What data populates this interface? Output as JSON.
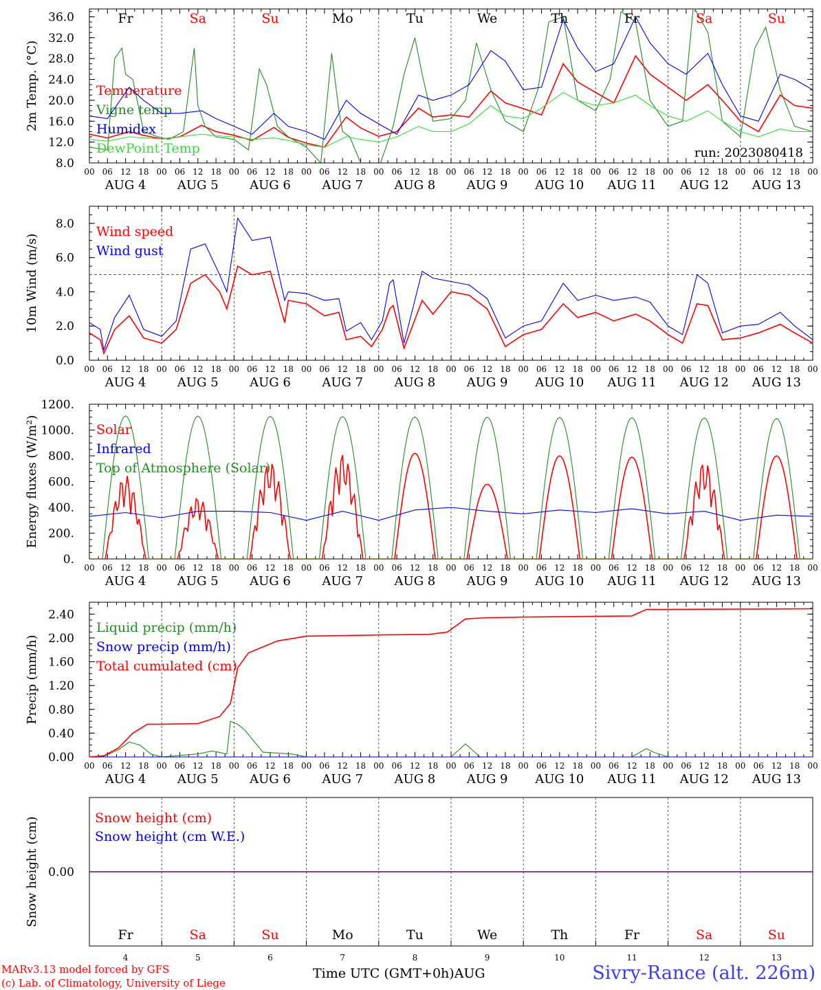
{
  "run": "run: 2023080418",
  "day_labels": [
    {
      "text": "Fr",
      "color": "#000000"
    },
    {
      "text": "Sa",
      "color": "#ff0000"
    },
    {
      "text": "Su",
      "color": "#ff0000"
    },
    {
      "text": "Mo",
      "color": "#000000"
    },
    {
      "text": "Tu",
      "color": "#000000"
    },
    {
      "text": "We",
      "color": "#000000"
    },
    {
      "text": "Th",
      "color": "#000000"
    },
    {
      "text": "Fr",
      "color": "#000000"
    },
    {
      "text": "Sa",
      "color": "#ff0000"
    },
    {
      "text": "Su",
      "color": "#ff0000"
    }
  ],
  "date_labels": [
    "AUG 4",
    "AUG 5",
    "AUG 6",
    "AUG 7",
    "AUG 8",
    "AUG 9",
    "AUG 10",
    "AUG 11",
    "AUG 12",
    "AUG 13"
  ],
  "day_numbers": [
    "4",
    "5",
    "6",
    "7",
    "8",
    "9",
    "10",
    "11",
    "12",
    "13"
  ],
  "hour_ticks": [
    "00",
    "06",
    "12",
    "18"
  ],
  "footer": {
    "model": "MARv3.13 model forced by GFS",
    "copyright": "(c) Lab. of Climatology, University of Liege",
    "time_label": "Time UTC (GMT+0h)AUG",
    "station": "Sivry-Rance (alt. 226m)"
  },
  "chart_data": [
    {
      "type": "line",
      "ylabel": "2m Temp. (°C)",
      "ylim": [
        8,
        37.5
      ],
      "ytick_values": [
        8,
        12,
        16,
        20,
        24,
        28,
        32,
        36
      ],
      "ytick_labels": [
        "8.0",
        "12.0",
        "16.0",
        "20.0",
        "24.0",
        "28.0",
        "32.0",
        "36.0"
      ],
      "x_unit": "days since Aug 4 00 UTC",
      "series": [
        {
          "name": "Temperature",
          "color": "#ff0000",
          "x": [
            0,
            0.25,
            0.55,
            0.75,
            1,
            1.25,
            1.55,
            1.75,
            2,
            2.25,
            2.55,
            2.75,
            3,
            3.25,
            3.55,
            3.75,
            4,
            4.25,
            4.55,
            4.75,
            5,
            5.25,
            5.55,
            5.75,
            6,
            6.25,
            6.55,
            6.75,
            7,
            7.25,
            7.55,
            7.75,
            8,
            8.25,
            8.55,
            8.75,
            9,
            9.25,
            9.55,
            9.75,
            10
          ],
          "y": [
            13.5,
            12.8,
            14,
            13.3,
            12.6,
            13,
            15.2,
            14,
            13.3,
            12.3,
            14.8,
            12.9,
            11.8,
            11,
            16.8,
            14.7,
            13.1,
            14,
            18.5,
            16.8,
            17.2,
            16.8,
            21.8,
            19.5,
            18.4,
            17.2,
            27,
            23.5,
            21.5,
            19.5,
            28.5,
            25,
            22.5,
            20,
            23,
            20,
            16,
            14,
            21,
            19,
            18.5
          ]
        },
        {
          "name": "Vigne temp",
          "color": "#228b22",
          "x": [
            0,
            0.25,
            0.35,
            0.45,
            0.5,
            0.6,
            0.75,
            0.95,
            1.1,
            1.3,
            1.45,
            1.5,
            1.6,
            1.75,
            2,
            2.2,
            2.35,
            2.45,
            2.6,
            2.75,
            3,
            3.2,
            3.35,
            3.45,
            3.5,
            3.6,
            3.75,
            4,
            4.2,
            4.35,
            4.5,
            4.6,
            4.75,
            5,
            5.2,
            5.35,
            5.55,
            5.75,
            6,
            6.2,
            6.35,
            6.55,
            6.75,
            7,
            7.2,
            7.35,
            7.55,
            7.75,
            8,
            8.2,
            8.35,
            8.55,
            8.75,
            9,
            9.2,
            9.35,
            9.55,
            9.75,
            10
          ],
          "y": [
            11,
            10.5,
            28,
            30,
            25,
            24,
            14,
            13,
            12.5,
            14,
            30,
            19,
            15,
            13,
            12.5,
            10.5,
            26,
            23,
            15,
            13,
            11,
            8,
            29,
            18,
            14,
            13,
            8,
            7,
            15,
            25,
            32,
            25,
            16,
            16.5,
            20,
            31,
            22,
            16,
            14,
            22,
            35,
            36,
            20,
            18,
            24,
            37,
            35,
            20,
            15,
            16,
            38,
            33,
            16,
            13,
            30,
            34,
            22,
            15,
            14
          ]
        },
        {
          "name": "Humidex",
          "color": "#0000ee",
          "x": [
            0,
            0.25,
            0.55,
            0.75,
            1,
            1.25,
            1.55,
            1.75,
            2,
            2.25,
            2.55,
            2.75,
            3,
            3.25,
            3.55,
            3.75,
            4,
            4.25,
            4.55,
            4.75,
            5,
            5.25,
            5.55,
            5.75,
            6,
            6.25,
            6.55,
            6.75,
            7,
            7.25,
            7.55,
            7.75,
            8,
            8.25,
            8.55,
            8.75,
            9,
            9.25,
            9.55,
            9.75,
            10
          ],
          "y": [
            17,
            16.5,
            22.5,
            20,
            17.5,
            17.5,
            18,
            16.5,
            15,
            13.5,
            17.5,
            15,
            14,
            12.5,
            20,
            17.5,
            15.5,
            13.5,
            21,
            20,
            21,
            23,
            29.5,
            27.5,
            22,
            22.5,
            35.5,
            30,
            25.5,
            27,
            36,
            31,
            27,
            25,
            29,
            23,
            17,
            16,
            25,
            24,
            22
          ]
        },
        {
          "name": "DewPoint Temp",
          "color": "#33dd33",
          "x": [
            0,
            0.25,
            0.55,
            0.75,
            1,
            1.25,
            1.55,
            1.75,
            2,
            2.25,
            2.55,
            2.75,
            3,
            3.25,
            3.55,
            3.75,
            4,
            4.25,
            4.55,
            4.75,
            5,
            5.25,
            5.55,
            5.75,
            6,
            6.25,
            6.55,
            6.75,
            7,
            7.25,
            7.55,
            7.75,
            8,
            8.25,
            8.55,
            8.75,
            9,
            9.25,
            9.55,
            9.75,
            10
          ],
          "y": [
            12.5,
            12.2,
            13,
            12.8,
            12.6,
            13,
            13.5,
            13.2,
            13,
            12.5,
            12.8,
            12.3,
            11.5,
            11,
            13,
            12.5,
            12,
            13,
            15,
            14,
            14,
            15.5,
            19,
            17,
            16.5,
            18.5,
            21.5,
            20,
            19,
            19.5,
            21,
            19,
            17,
            16,
            18,
            16,
            14,
            13,
            14.5,
            14,
            14
          ]
        }
      ]
    },
    {
      "type": "line",
      "ylabel": "10m Wind (m/s)",
      "ylim": [
        0,
        9
      ],
      "ytick_values": [
        0,
        2,
        4,
        6,
        8
      ],
      "ytick_labels": [
        "0.0",
        "2.0",
        "4.0",
        "6.0",
        "8.0"
      ],
      "reference_line": 5,
      "series": [
        {
          "name": "Wind speed",
          "color": "#ff0000",
          "x": [
            0,
            0.15,
            0.2,
            0.35,
            0.55,
            0.75,
            1,
            1.2,
            1.4,
            1.6,
            1.8,
            1.9,
            2.05,
            2.25,
            2.5,
            2.7,
            2.75,
            3,
            3.25,
            3.45,
            3.55,
            3.75,
            3.9,
            4.05,
            4.15,
            4.2,
            4.35,
            4.6,
            4.75,
            5,
            5.25,
            5.5,
            5.75,
            6,
            6.25,
            6.55,
            6.75,
            7,
            7.25,
            7.55,
            7.75,
            8,
            8.2,
            8.4,
            8.55,
            8.75,
            9,
            9.25,
            9.55,
            9.75,
            10
          ],
          "y": [
            1.6,
            1.2,
            0.4,
            1.8,
            2.6,
            1.3,
            1,
            1.8,
            4.5,
            5,
            4,
            3,
            5.5,
            5,
            5.2,
            2.2,
            3.5,
            3.3,
            2.6,
            2.8,
            1.2,
            1.4,
            0.8,
            1.8,
            3,
            3.2,
            0.7,
            3.5,
            2.7,
            4,
            3.8,
            3,
            0.8,
            1.5,
            1.8,
            3.3,
            2.5,
            2.8,
            2.3,
            2.7,
            2.3,
            1.5,
            1,
            3.3,
            3.2,
            1.2,
            1.3,
            1.6,
            2.1,
            1.6,
            1
          ]
        },
        {
          "name": "Wind gust",
          "color": "#0000ee",
          "x": [
            0,
            0.15,
            0.2,
            0.35,
            0.55,
            0.75,
            1,
            1.2,
            1.4,
            1.6,
            1.8,
            1.9,
            2.05,
            2.25,
            2.5,
            2.7,
            2.75,
            3,
            3.25,
            3.45,
            3.55,
            3.75,
            3.9,
            4.05,
            4.15,
            4.2,
            4.35,
            4.6,
            4.75,
            5,
            5.25,
            5.5,
            5.75,
            6,
            6.25,
            6.55,
            6.75,
            7,
            7.25,
            7.55,
            7.75,
            8,
            8.2,
            8.4,
            8.55,
            8.75,
            9,
            9.25,
            9.55,
            9.75,
            10
          ],
          "y": [
            2.2,
            1.8,
            0.6,
            2.5,
            3.8,
            1.8,
            1.4,
            2.3,
            6.5,
            6.8,
            5,
            4,
            8.3,
            7,
            7.2,
            3.5,
            4,
            3.9,
            3.5,
            3.6,
            1.7,
            2.2,
            1.2,
            2.3,
            4.5,
            4.7,
            1,
            5.2,
            4.8,
            4.6,
            4.4,
            3.6,
            1.3,
            2,
            2.3,
            4.5,
            3.5,
            3.8,
            3.5,
            3.7,
            3.4,
            2,
            1.5,
            5,
            4.5,
            1.6,
            2,
            2.1,
            2.8,
            2,
            1.2
          ]
        }
      ]
    },
    {
      "type": "line",
      "ylabel": "Energy fluxes (W/m²)",
      "ylim": [
        0,
        1200
      ],
      "ytick_values": [
        0,
        200,
        400,
        600,
        800,
        1000,
        1200
      ],
      "ytick_labels": [
        "0.",
        "200.",
        "400.",
        "600.",
        "800.",
        "1000.",
        "1200."
      ],
      "series": [
        {
          "name": "Solar",
          "color": "#ff0000",
          "day_peaks": [
            650,
            480,
            760,
            820,
            820,
            580,
            800,
            790,
            760,
            800
          ]
        },
        {
          "name": "Infrared",
          "color": "#0000ee",
          "x": [
            0,
            0.5,
            1,
            1.5,
            2,
            2.5,
            3,
            3.5,
            4,
            4.5,
            5,
            5.5,
            6,
            6.5,
            7,
            7.5,
            8,
            8.5,
            9,
            9.5,
            10
          ],
          "y": [
            330,
            360,
            320,
            370,
            370,
            360,
            300,
            370,
            300,
            380,
            400,
            370,
            350,
            380,
            360,
            390,
            350,
            370,
            300,
            340,
            330
          ]
        },
        {
          "name": "Top of Atmosphere (Solar)",
          "color": "#228b22",
          "day_peaks": [
            1110,
            1108,
            1106,
            1104,
            1102,
            1100,
            1098,
            1096,
            1094,
            1090
          ]
        }
      ]
    },
    {
      "type": "line",
      "ylabel": "Precip (mm/h)",
      "ylim": [
        0,
        2.6
      ],
      "ytick_values": [
        0,
        0.4,
        0.8,
        1.2,
        1.6,
        2,
        2.4
      ],
      "ytick_labels": [
        "0.00",
        "0.40",
        "0.80",
        "1.20",
        "1.60",
        "2.00",
        "2.40"
      ],
      "series": [
        {
          "name": "Liquid precip (mm/h)",
          "color": "#228b22",
          "x": [
            0,
            0.2,
            0.4,
            0.55,
            0.7,
            0.85,
            1,
            1.5,
            1.7,
            1.9,
            1.95,
            2.05,
            2.15,
            2.25,
            2.4,
            2.8,
            3,
            5,
            5.2,
            5.4,
            7.5,
            7.7,
            7.8,
            8,
            10
          ],
          "y": [
            0,
            0.01,
            0.12,
            0.25,
            0.2,
            0.05,
            0,
            0.05,
            0.1,
            0.05,
            0.6,
            0.55,
            0.45,
            0.3,
            0.08,
            0.05,
            0,
            0,
            0.22,
            0,
            0,
            0.14,
            0.08,
            0,
            0
          ]
        },
        {
          "name": "Snow precip (mm/h)",
          "color": "#0000ee",
          "x": [
            0,
            10
          ],
          "y": [
            0,
            0
          ]
        },
        {
          "name": "Total cumulated (cm)",
          "color": "#ff0000",
          "x": [
            0,
            0.2,
            0.4,
            0.6,
            0.8,
            1,
            1.5,
            1.8,
            1.95,
            2.05,
            2.2,
            2.6,
            3,
            4,
            4.7,
            4.95,
            5.2,
            5.5,
            6,
            7.5,
            7.7,
            8,
            10
          ],
          "y": [
            0,
            0.02,
            0.15,
            0.4,
            0.55,
            0.55,
            0.56,
            0.68,
            0.9,
            1.5,
            1.75,
            1.95,
            2.03,
            2.05,
            2.06,
            2.1,
            2.32,
            2.34,
            2.35,
            2.37,
            2.48,
            2.48,
            2.49
          ]
        }
      ]
    },
    {
      "type": "line",
      "ylabel": "Snow height (cm)",
      "ylim": [
        -1,
        1
      ],
      "ytick_values": [
        0
      ],
      "ytick_labels": [
        "0.00"
      ],
      "series": [
        {
          "name": "Snow height (cm)",
          "color": "#ff0000",
          "x": [
            0,
            10
          ],
          "y": [
            0,
            0
          ]
        },
        {
          "name": "Snow height (cm W.E.)",
          "color": "#0000ee",
          "x": [
            0,
            10
          ],
          "y": [
            0,
            0
          ]
        }
      ]
    }
  ]
}
